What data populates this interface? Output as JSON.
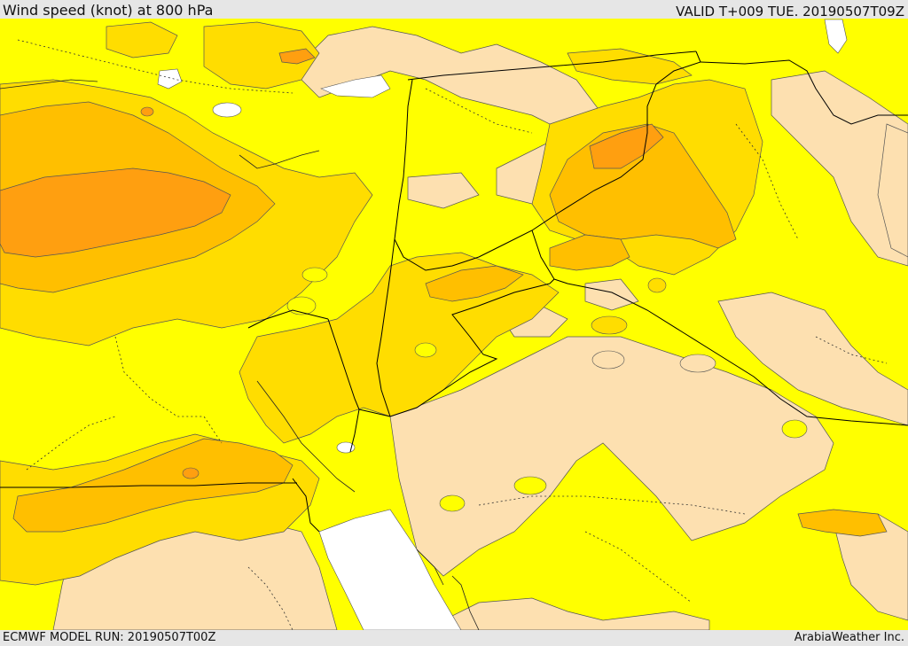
{
  "header": {
    "title": "Wind speed (knot) at 800 hPa",
    "valid_time": "VALID T+009 TUE. 20190507T09Z"
  },
  "footer": {
    "model_run": "ECMWF MODEL RUN: 20190507T00Z",
    "credit": "ArabiaWeather Inc."
  },
  "map": {
    "colors": {
      "background": "#e6e6e6",
      "calm": "#fde0b0",
      "light": "#ffff00",
      "moderate": "#ffdd00",
      "strong": "#ffbf00",
      "stronger": "#ff9f10",
      "no_data": "#ffffff",
      "contour": "#555555",
      "border": "#000000"
    }
  }
}
